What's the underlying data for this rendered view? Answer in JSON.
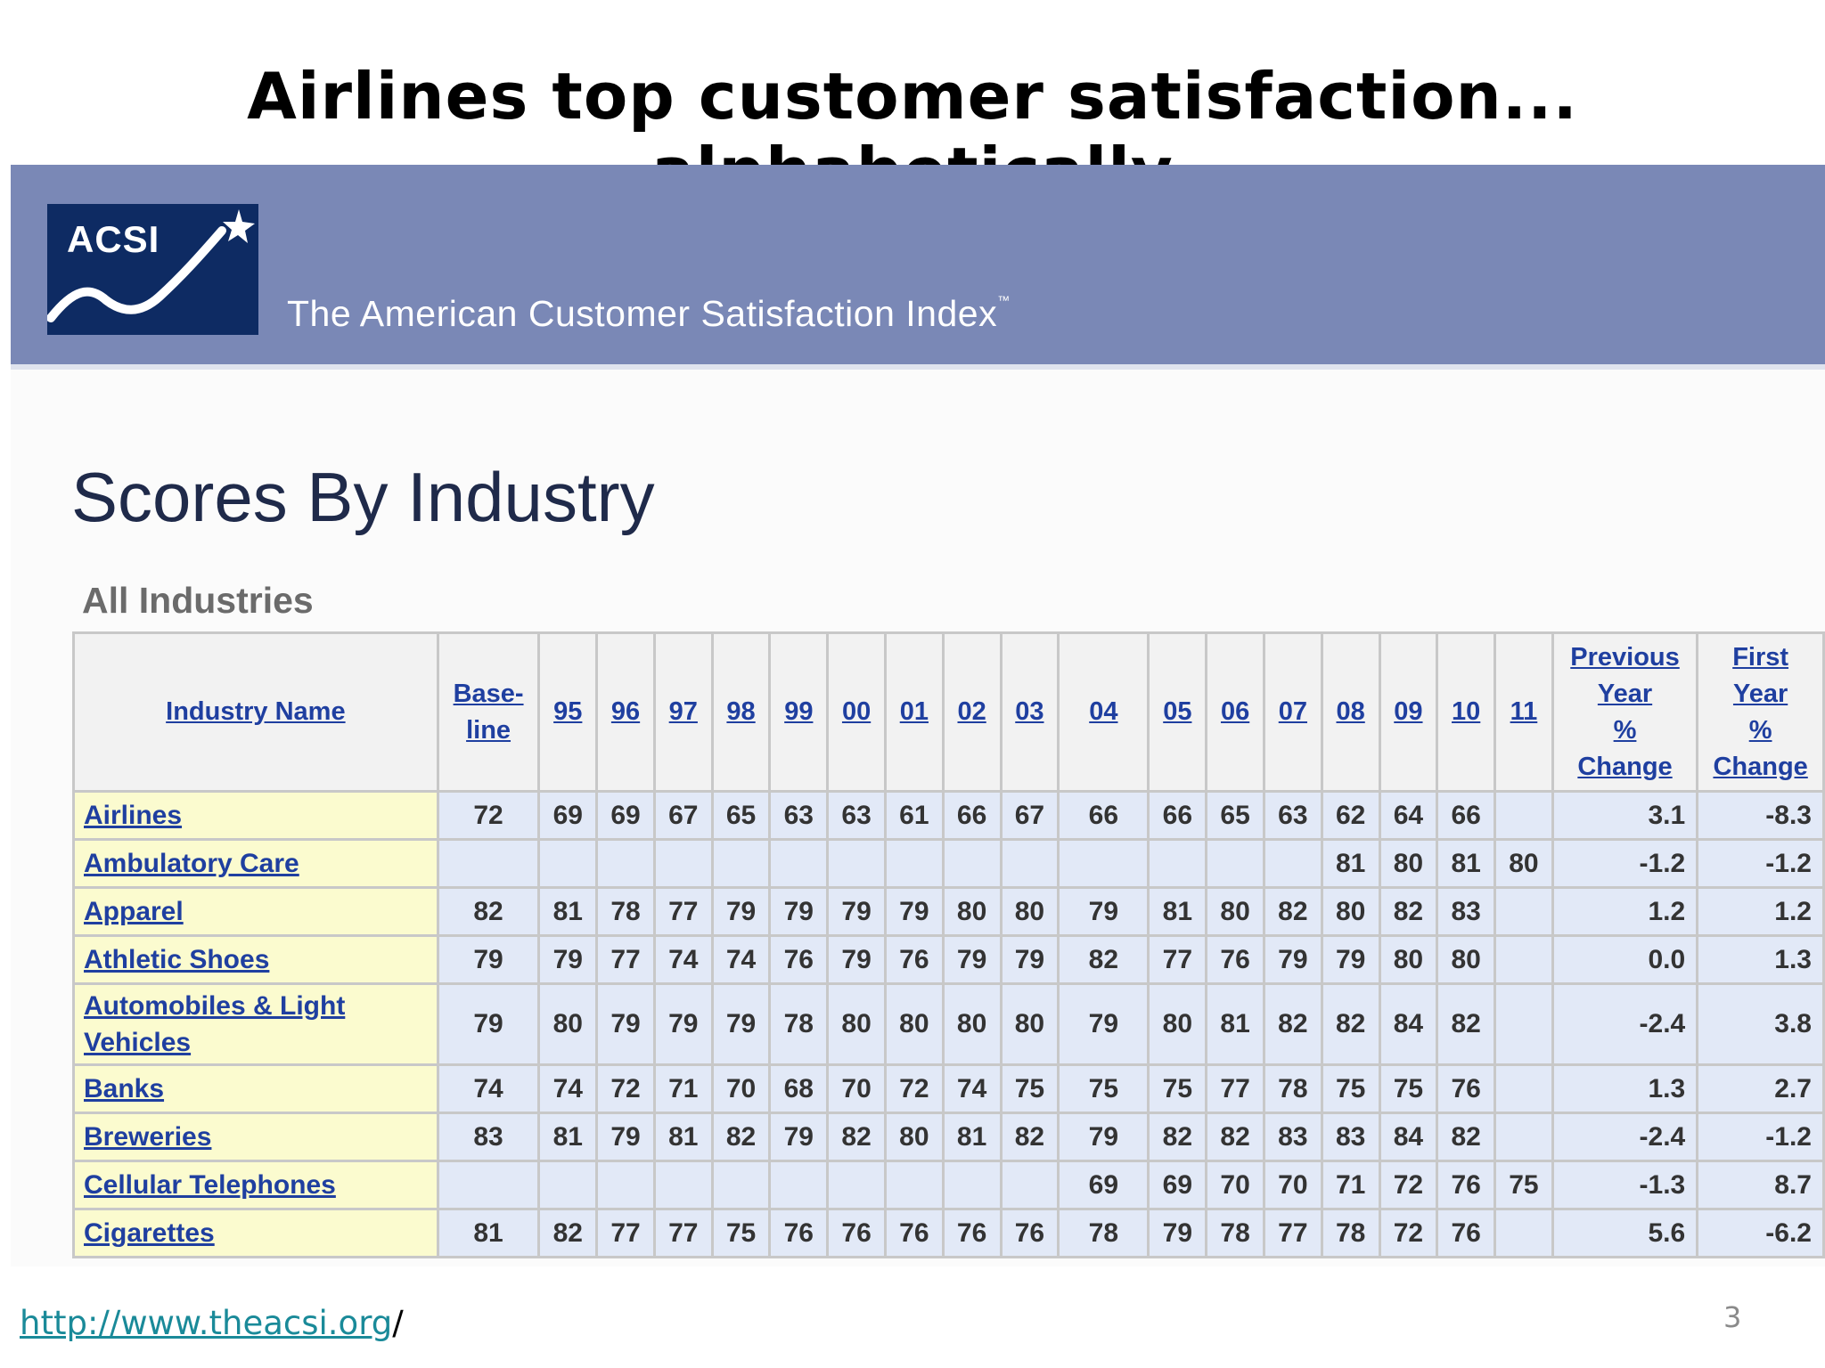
{
  "slide": {
    "title": "Airlines top customer satisfaction... alphabetically",
    "footer_link": "http://www.theacsi.org",
    "footer_suffix": "/",
    "page_number": "3"
  },
  "site": {
    "logo_text": "ACSI",
    "logo_icon": "rising-swoosh-star-icon",
    "brand_name": "The American Customer Satisfaction Index",
    "brand_tm": "™",
    "page_title": "Scores By Industry",
    "section_title": "All Industries"
  },
  "colors": {
    "banner": "#7a88b6",
    "logo_bg": "#0e2b63",
    "link": "#1f3fa0",
    "name_cell_bg": "#fbfbcf",
    "score_cell_bg": "#e2e9f7",
    "footer_link": "#1a8a99"
  },
  "table": {
    "headers": {
      "name": "Industry Name",
      "baseline": [
        "Base-",
        "line"
      ],
      "years": [
        "95",
        "96",
        "97",
        "98",
        "99",
        "00",
        "01",
        "02",
        "03",
        "04",
        "05",
        "06",
        "07",
        "08",
        "09",
        "10",
        "11"
      ],
      "prev_change": [
        "Previous",
        "Year",
        "%",
        "Change"
      ],
      "first_change": [
        "First",
        "Year",
        "%",
        "Change"
      ]
    },
    "rows": [
      {
        "name": [
          "Airlines"
        ],
        "baseline": "72",
        "scores": [
          "69",
          "69",
          "67",
          "65",
          "63",
          "63",
          "61",
          "66",
          "67",
          "66",
          "66",
          "65",
          "63",
          "62",
          "64",
          "66",
          ""
        ],
        "prev": "3.1",
        "first": "-8.3"
      },
      {
        "name": [
          "Ambulatory Care"
        ],
        "baseline": "",
        "scores": [
          "",
          "",
          "",
          "",
          "",
          "",
          "",
          "",
          "",
          "",
          "",
          "",
          "",
          "81",
          "80",
          "81",
          "80"
        ],
        "prev": "-1.2",
        "first": "-1.2"
      },
      {
        "name": [
          "Apparel"
        ],
        "baseline": "82",
        "scores": [
          "81",
          "78",
          "77",
          "79",
          "79",
          "79",
          "79",
          "80",
          "80",
          "79",
          "81",
          "80",
          "82",
          "80",
          "82",
          "83",
          ""
        ],
        "prev": "1.2",
        "first": "1.2"
      },
      {
        "name": [
          "Athletic Shoes"
        ],
        "baseline": "79",
        "scores": [
          "79",
          "77",
          "74",
          "74",
          "76",
          "79",
          "76",
          "79",
          "79",
          "82",
          "77",
          "76",
          "79",
          "79",
          "80",
          "80",
          ""
        ],
        "prev": "0.0",
        "first": "1.3"
      },
      {
        "name": [
          "Automobiles & Light",
          "Vehicles"
        ],
        "baseline": "79",
        "scores": [
          "80",
          "79",
          "79",
          "79",
          "78",
          "80",
          "80",
          "80",
          "80",
          "79",
          "80",
          "81",
          "82",
          "82",
          "84",
          "82",
          ""
        ],
        "prev": "-2.4",
        "first": "3.8"
      },
      {
        "name": [
          "Banks"
        ],
        "baseline": "74",
        "scores": [
          "74",
          "72",
          "71",
          "70",
          "68",
          "70",
          "72",
          "74",
          "75",
          "75",
          "75",
          "77",
          "78",
          "75",
          "75",
          "76",
          ""
        ],
        "prev": "1.3",
        "first": "2.7"
      },
      {
        "name": [
          "Breweries"
        ],
        "baseline": "83",
        "scores": [
          "81",
          "79",
          "81",
          "82",
          "79",
          "82",
          "80",
          "81",
          "82",
          "79",
          "82",
          "82",
          "83",
          "83",
          "84",
          "82",
          ""
        ],
        "prev": "-2.4",
        "first": "-1.2"
      },
      {
        "name": [
          "Cellular Telephones"
        ],
        "baseline": "",
        "scores": [
          "",
          "",
          "",
          "",
          "",
          "",
          "",
          "",
          "",
          "69",
          "69",
          "70",
          "70",
          "71",
          "72",
          "76",
          "75"
        ],
        "prev": "-1.3",
        "first": "8.7"
      },
      {
        "name": [
          "Cigarettes"
        ],
        "baseline": "81",
        "scores": [
          "82",
          "77",
          "77",
          "75",
          "76",
          "76",
          "76",
          "76",
          "76",
          "78",
          "79",
          "78",
          "77",
          "78",
          "72",
          "76",
          ""
        ],
        "prev": "5.6",
        "first": "-6.2"
      }
    ]
  }
}
